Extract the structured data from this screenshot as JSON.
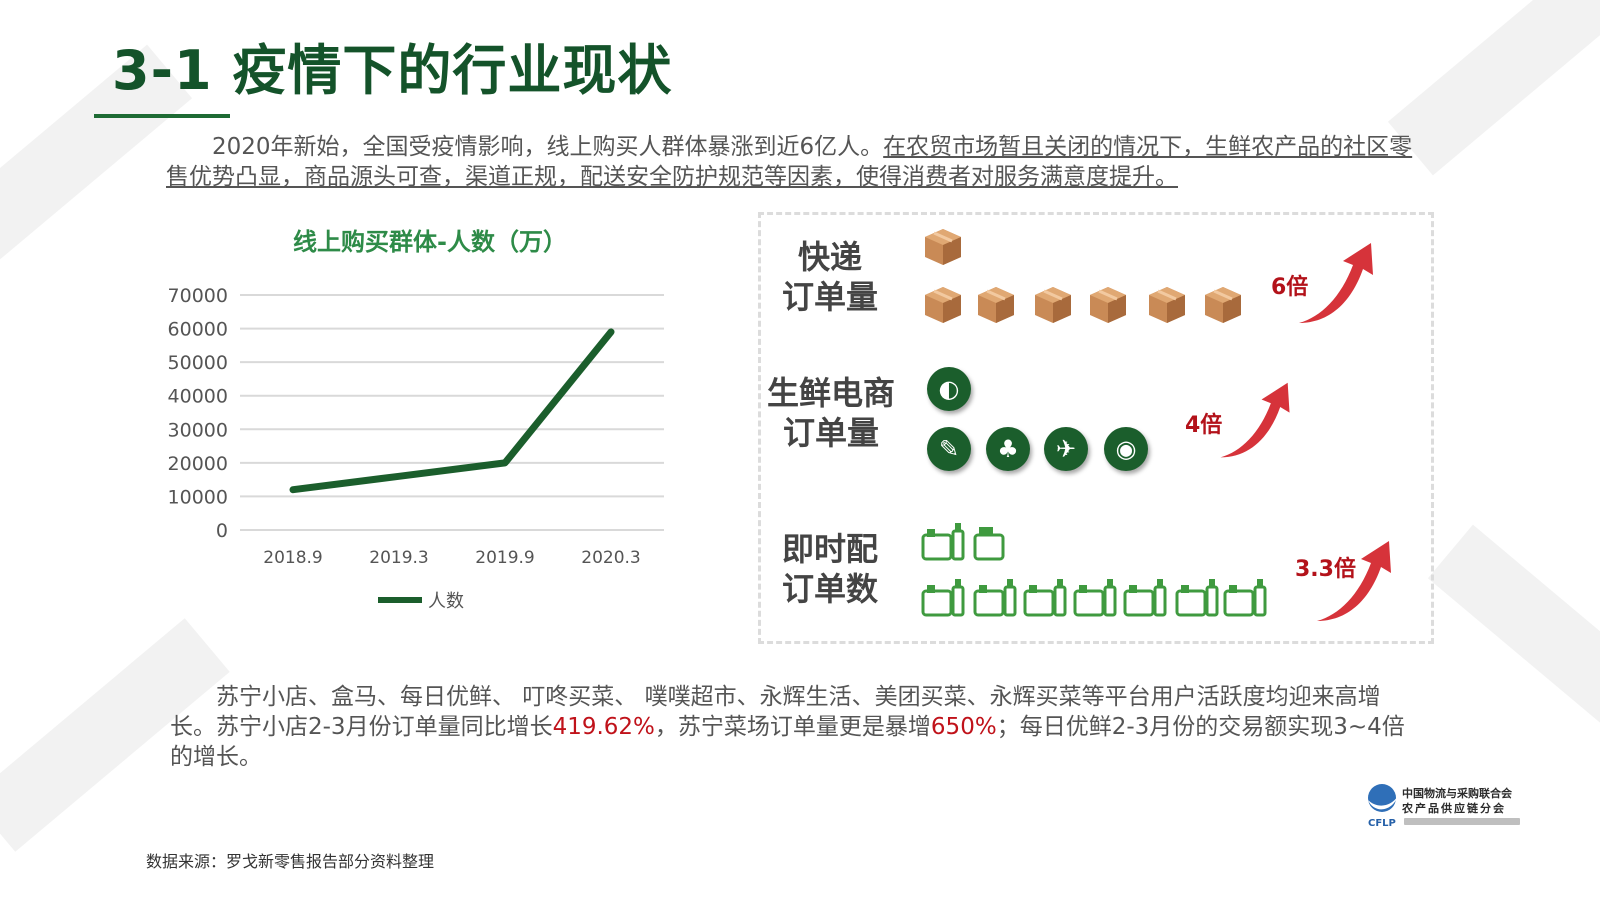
{
  "title": "3-1 疫情下的行业现状",
  "intro": {
    "plain": "2020年新始，全国受疫情影响，线上购买人群体暴涨到近6亿人。",
    "underlined": "在农贸市场暂且关闭的情况下，生鲜农产品的社区零售优势凸显，商品源头可查，渠道正规，配送安全防护规范等因素，使得消费者对服务满意度提升。"
  },
  "chart_data": {
    "type": "line",
    "title": "线上购买群体-人数（万）",
    "categories": [
      "2018.9",
      "2019.3",
      "2019.9",
      "2020.3"
    ],
    "series": [
      {
        "name": "人数",
        "values": [
          12000,
          16000,
          20000,
          59000
        ],
        "color": "#1b5e2c"
      }
    ],
    "yticks": [
      0,
      10000,
      20000,
      30000,
      40000,
      50000,
      60000,
      70000
    ],
    "ylim": [
      0,
      70000
    ],
    "grid": true,
    "legend": "bottom"
  },
  "panel": {
    "rows": [
      {
        "label_line1": "快递",
        "label_line2": "订单量",
        "multiplier": "6倍",
        "icon": "parcel-box-icon"
      },
      {
        "label_line1": "生鲜电商",
        "label_line2": "订单量",
        "multiplier": "4倍",
        "icon": "fresh-food-icon"
      },
      {
        "label_line1": "即时配",
        "label_line2": "订单数",
        "multiplier": "3.3倍",
        "icon": "grocery-bag-icon"
      }
    ],
    "arrow_color": "#d6333a",
    "box_color": "#c98a56"
  },
  "bottom": {
    "p1": "苏宁小店、盒马、每日优鲜、 叮咚买菜、 噗噗超市、永辉生活、美团买菜、永辉买菜等平台用户活跃度均迎来高增长。苏宁小店2-3月份订单量同比增长",
    "h1": "419.62%",
    "p2": "，苏宁菜场订单量更是暴增",
    "h2": "650%",
    "p3": "；每日优鲜2-3月份的交易额实现3~4倍的增长。"
  },
  "source": "数据来源：罗戈新零售报告部分资料整理",
  "logo": {
    "line1": "中国物流与采购联合会",
    "line2": "农产品供应链分会",
    "abbr": "CFLP"
  },
  "colors": {
    "title_green": "#14532a",
    "highlight_red": "#c0121a"
  }
}
